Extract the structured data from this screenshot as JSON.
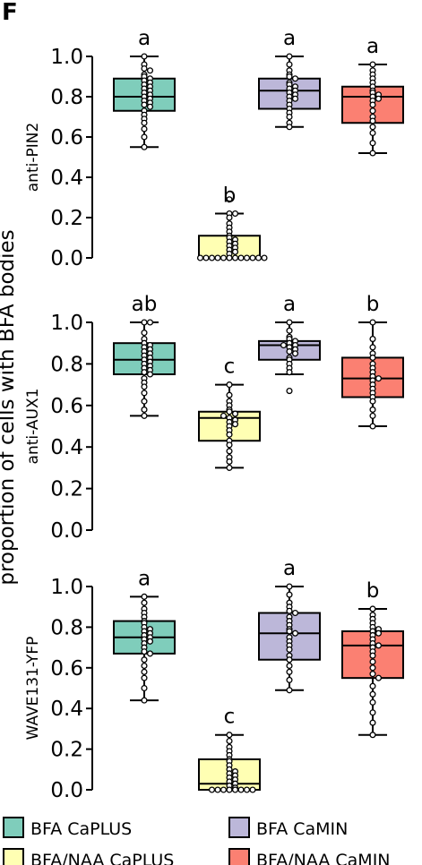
{
  "panel_label": "F",
  "ylabel": "proportion of cells with BFA bodies",
  "legend": [
    {
      "label": "BFA CaPLUS",
      "color": "#7fcdbb"
    },
    {
      "label": "BFA CaMIN",
      "color": "#bcb7d9"
    },
    {
      "label": "BFA/NAA CaPLUS",
      "color": "#ffffb3"
    },
    {
      "label": "BFA/NAA CaMIN",
      "color": "#fb8072"
    }
  ],
  "chart_data": [
    {
      "type": "box",
      "panel": "anti-PIN2",
      "ylabel": "anti-PIN2",
      "ylim": [
        0.0,
        1.0
      ],
      "yticks": [
        "0.0",
        "0.2",
        "0.4",
        "0.6",
        "0.8",
        "1.0"
      ],
      "groups": [
        {
          "name": "BFA CaPLUS",
          "color": "#7fcdbb",
          "letter": "a",
          "min": 0.55,
          "q1": 0.73,
          "median": 0.8,
          "q3": 0.89,
          "max": 1.0,
          "points": [
            1.0,
            0.96,
            0.94,
            0.93,
            0.91,
            0.9,
            0.89,
            0.88,
            0.87,
            0.86,
            0.85,
            0.84,
            0.83,
            0.82,
            0.81,
            0.8,
            0.79,
            0.78,
            0.77,
            0.76,
            0.75,
            0.73,
            0.71,
            0.69,
            0.67,
            0.64,
            0.6,
            0.55
          ]
        },
        {
          "name": "BFA/NAA CaPLUS",
          "color": "#ffffb3",
          "letter": "b",
          "min": 0.0,
          "q1": 0.0,
          "median": 0.0,
          "q3": 0.11,
          "max": 0.22,
          "points": [
            0.29,
            0.22,
            0.22,
            0.2,
            0.17,
            0.15,
            0.13,
            0.11,
            0.1,
            0.09,
            0.08,
            0.07,
            0.06,
            0.05,
            0.04,
            0.03,
            0.02,
            0.0,
            0.0,
            0.0,
            0.0,
            0.0,
            0.0,
            0.0,
            0.0,
            0.0,
            0.0,
            0.0,
            0.0
          ]
        },
        {
          "name": "BFA CaMIN",
          "color": "#bcb7d9",
          "letter": "a",
          "min": 0.65,
          "q1": 0.74,
          "median": 0.83,
          "q3": 0.89,
          "max": 1.0,
          "points": [
            1.0,
            0.96,
            0.93,
            0.91,
            0.9,
            0.89,
            0.87,
            0.86,
            0.85,
            0.84,
            0.83,
            0.82,
            0.81,
            0.8,
            0.79,
            0.78,
            0.76,
            0.74,
            0.72,
            0.7,
            0.67,
            0.65
          ]
        },
        {
          "name": "BFA/NAA CaMIN",
          "color": "#fb8072",
          "letter": "a",
          "min": 0.52,
          "q1": 0.67,
          "median": 0.8,
          "q3": 0.85,
          "max": 0.96,
          "points": [
            0.96,
            0.93,
            0.91,
            0.89,
            0.87,
            0.85,
            0.83,
            0.82,
            0.81,
            0.8,
            0.79,
            0.78,
            0.76,
            0.73,
            0.7,
            0.68,
            0.65,
            0.62,
            0.57,
            0.52
          ]
        }
      ]
    },
    {
      "type": "box",
      "panel": "anti-AUX1",
      "ylabel": "anti-AUX1",
      "ylim": [
        0.0,
        1.0
      ],
      "yticks": [
        "0.0",
        "0.2",
        "0.4",
        "0.6",
        "0.8",
        "1.0"
      ],
      "groups": [
        {
          "name": "BFA CaPLUS",
          "color": "#7fcdbb",
          "letter": "ab",
          "min": 0.55,
          "q1": 0.75,
          "median": 0.82,
          "q3": 0.9,
          "max": 1.0,
          "points": [
            1.0,
            1.0,
            0.95,
            0.92,
            0.9,
            0.89,
            0.88,
            0.87,
            0.86,
            0.85,
            0.84,
            0.83,
            0.82,
            0.81,
            0.8,
            0.79,
            0.78,
            0.77,
            0.76,
            0.75,
            0.73,
            0.71,
            0.69,
            0.66,
            0.62,
            0.58,
            0.55
          ]
        },
        {
          "name": "BFA/NAA CaPLUS",
          "color": "#ffffb3",
          "letter": "c",
          "min": 0.3,
          "q1": 0.43,
          "median": 0.54,
          "q3": 0.57,
          "max": 0.7,
          "points": [
            0.7,
            0.65,
            0.62,
            0.6,
            0.58,
            0.57,
            0.56,
            0.55,
            0.54,
            0.53,
            0.52,
            0.51,
            0.5,
            0.48,
            0.46,
            0.43,
            0.41,
            0.38,
            0.35,
            0.33,
            0.3
          ]
        },
        {
          "name": "BFA CaMIN",
          "color": "#bcb7d9",
          "letter": "a",
          "min": 0.75,
          "q1": 0.82,
          "median": 0.89,
          "q3": 0.91,
          "max": 1.0,
          "points": [
            1.0,
            0.96,
            0.93,
            0.92,
            0.91,
            0.9,
            0.89,
            0.89,
            0.88,
            0.87,
            0.86,
            0.85,
            0.83,
            0.82,
            0.8,
            0.78,
            0.76,
            0.67
          ]
        },
        {
          "name": "BFA/NAA CaMIN",
          "color": "#fb8072",
          "letter": "b",
          "min": 0.5,
          "q1": 0.64,
          "median": 0.73,
          "q3": 0.83,
          "max": 1.0,
          "points": [
            1.0,
            0.92,
            0.88,
            0.85,
            0.83,
            0.8,
            0.78,
            0.76,
            0.74,
            0.73,
            0.72,
            0.7,
            0.68,
            0.66,
            0.64,
            0.62,
            0.58,
            0.55,
            0.5
          ]
        }
      ]
    },
    {
      "type": "box",
      "panel": "WAVE131-YFP",
      "ylabel": "WAVE131-YFP",
      "ylim": [
        0.0,
        1.0
      ],
      "yticks": [
        "0.0",
        "0.2",
        "0.4",
        "0.6",
        "0.8",
        "1.0"
      ],
      "groups": [
        {
          "name": "BFA CaPLUS",
          "color": "#7fcdbb",
          "letter": "a",
          "min": 0.44,
          "q1": 0.67,
          "median": 0.75,
          "q3": 0.83,
          "max": 0.95,
          "points": [
            0.95,
            0.92,
            0.89,
            0.87,
            0.85,
            0.83,
            0.82,
            0.8,
            0.79,
            0.78,
            0.77,
            0.76,
            0.75,
            0.74,
            0.73,
            0.72,
            0.7,
            0.68,
            0.67,
            0.64,
            0.61,
            0.58,
            0.55,
            0.5,
            0.44
          ]
        },
        {
          "name": "BFA/NAA CaPLUS",
          "color": "#ffffb3",
          "letter": "c",
          "min": 0.0,
          "q1": 0.0,
          "median": 0.03,
          "q3": 0.15,
          "max": 0.27,
          "points": [
            0.27,
            0.24,
            0.21,
            0.19,
            0.17,
            0.15,
            0.14,
            0.12,
            0.1,
            0.09,
            0.08,
            0.07,
            0.06,
            0.05,
            0.04,
            0.03,
            0.02,
            0.01,
            0.0,
            0.0,
            0.0,
            0.0,
            0.0,
            0.0,
            0.0,
            0.0
          ]
        },
        {
          "name": "BFA CaMIN",
          "color": "#bcb7d9",
          "letter": "a",
          "min": 0.49,
          "q1": 0.64,
          "median": 0.77,
          "q3": 0.87,
          "max": 1.0,
          "points": [
            1.0,
            0.96,
            0.92,
            0.9,
            0.88,
            0.87,
            0.85,
            0.83,
            0.81,
            0.79,
            0.78,
            0.77,
            0.75,
            0.73,
            0.71,
            0.69,
            0.66,
            0.64,
            0.61,
            0.58,
            0.54,
            0.49
          ]
        },
        {
          "name": "BFA/NAA CaMIN",
          "color": "#fb8072",
          "letter": "b",
          "min": 0.27,
          "q1": 0.55,
          "median": 0.71,
          "q3": 0.78,
          "max": 0.89,
          "points": [
            0.89,
            0.86,
            0.84,
            0.82,
            0.8,
            0.79,
            0.78,
            0.77,
            0.76,
            0.74,
            0.72,
            0.71,
            0.7,
            0.68,
            0.66,
            0.63,
            0.6,
            0.57,
            0.55,
            0.51,
            0.47,
            0.43,
            0.38,
            0.33,
            0.27
          ]
        }
      ]
    }
  ]
}
